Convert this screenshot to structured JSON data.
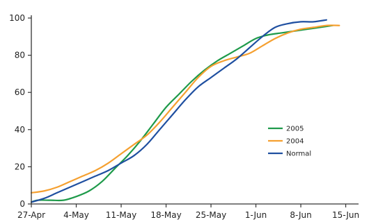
{
  "chart_data": {
    "type": "line",
    "title": "",
    "xlabel": "",
    "ylabel": "",
    "ylim": [
      0,
      100
    ],
    "yticks": [
      0,
      20,
      40,
      60,
      80,
      100
    ],
    "xlim": [
      "2005-04-27",
      "2005-06-17"
    ],
    "xticks": [
      {
        "date": "2005-04-27",
        "label": "27-Apr"
      },
      {
        "date": "2005-05-04",
        "label": "4-May"
      },
      {
        "date": "2005-05-11",
        "label": "11-May"
      },
      {
        "date": "2005-05-18",
        "label": "18-May"
      },
      {
        "date": "2005-05-25",
        "label": "25-May"
      },
      {
        "date": "2005-06-01",
        "label": "1-Jun"
      },
      {
        "date": "2005-06-08",
        "label": "8-Jun"
      },
      {
        "date": "2005-06-15",
        "label": "15-Jun"
      }
    ],
    "grid": false,
    "legend_position": "right",
    "series": [
      {
        "name": "2005",
        "color": "#1e9a4a",
        "points": [
          [
            "2005-04-27",
            1
          ],
          [
            "2005-04-28",
            2
          ],
          [
            "2005-04-30",
            2
          ],
          [
            "2005-05-02",
            2
          ],
          [
            "2005-05-04",
            4
          ],
          [
            "2005-05-06",
            7
          ],
          [
            "2005-05-08",
            12
          ],
          [
            "2005-05-10",
            19
          ],
          [
            "2005-05-12",
            26
          ],
          [
            "2005-05-14",
            34
          ],
          [
            "2005-05-16",
            43
          ],
          [
            "2005-05-18",
            52
          ],
          [
            "2005-05-20",
            59
          ],
          [
            "2005-05-22",
            66
          ],
          [
            "2005-05-24",
            72
          ],
          [
            "2005-05-26",
            77
          ],
          [
            "2005-05-28",
            81
          ],
          [
            "2005-05-30",
            85
          ],
          [
            "2005-06-01",
            89
          ],
          [
            "2005-06-03",
            91
          ],
          [
            "2005-06-05",
            92
          ],
          [
            "2005-06-07",
            93
          ],
          [
            "2005-06-09",
            94
          ],
          [
            "2005-06-11",
            95
          ],
          [
            "2005-06-13",
            96
          ]
        ]
      },
      {
        "name": "2004",
        "color": "#f5a030",
        "points": [
          [
            "2005-04-27",
            6
          ],
          [
            "2005-04-29",
            7
          ],
          [
            "2005-05-01",
            9
          ],
          [
            "2005-05-03",
            12
          ],
          [
            "2005-05-05",
            15
          ],
          [
            "2005-05-07",
            18
          ],
          [
            "2005-05-09",
            22
          ],
          [
            "2005-05-11",
            27
          ],
          [
            "2005-05-13",
            32
          ],
          [
            "2005-05-15",
            37
          ],
          [
            "2005-05-17",
            44
          ],
          [
            "2005-05-19",
            52
          ],
          [
            "2005-05-21",
            60
          ],
          [
            "2005-05-23",
            68
          ],
          [
            "2005-05-25",
            74
          ],
          [
            "2005-05-27",
            77
          ],
          [
            "2005-05-29",
            79
          ],
          [
            "2005-05-31",
            81
          ],
          [
            "2005-06-02",
            85
          ],
          [
            "2005-06-04",
            89
          ],
          [
            "2005-06-06",
            92
          ],
          [
            "2005-06-08",
            94
          ],
          [
            "2005-06-10",
            95
          ],
          [
            "2005-06-12",
            96
          ],
          [
            "2005-06-14",
            96
          ]
        ]
      },
      {
        "name": "Normal",
        "color": "#1f4fa0",
        "points": [
          [
            "2005-04-27",
            1
          ],
          [
            "2005-04-29",
            3
          ],
          [
            "2005-05-01",
            6
          ],
          [
            "2005-05-03",
            9
          ],
          [
            "2005-05-05",
            12
          ],
          [
            "2005-05-07",
            15
          ],
          [
            "2005-05-09",
            18
          ],
          [
            "2005-05-11",
            22
          ],
          [
            "2005-05-13",
            26
          ],
          [
            "2005-05-15",
            32
          ],
          [
            "2005-05-17",
            40
          ],
          [
            "2005-05-19",
            48
          ],
          [
            "2005-05-21",
            56
          ],
          [
            "2005-05-23",
            63
          ],
          [
            "2005-05-25",
            68
          ],
          [
            "2005-05-27",
            73
          ],
          [
            "2005-05-29",
            78
          ],
          [
            "2005-05-31",
            84
          ],
          [
            "2005-06-02",
            90
          ],
          [
            "2005-06-04",
            95
          ],
          [
            "2005-06-06",
            97
          ],
          [
            "2005-06-08",
            98
          ],
          [
            "2005-06-10",
            98
          ],
          [
            "2005-06-12",
            99
          ]
        ]
      }
    ]
  }
}
